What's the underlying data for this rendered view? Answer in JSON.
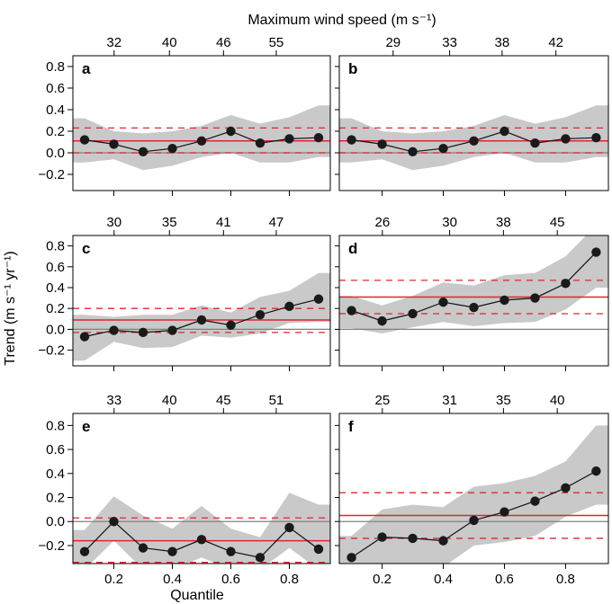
{
  "figure": {
    "top_axis_title": "Maximum wind speed (m s⁻¹)",
    "y_axis_title": "Trend (m s⁻¹ yr⁻¹)",
    "x_axis_title": "Quantile"
  },
  "chart_data": [
    {
      "type": "line",
      "panel": "a",
      "x": [
        0.1,
        0.2,
        0.3,
        0.4,
        0.5,
        0.6,
        0.7,
        0.8,
        0.9
      ],
      "series": [
        {
          "values": [
            0.12,
            0.08,
            0.01,
            0.04,
            0.11,
            0.2,
            0.09,
            0.13,
            0.14
          ]
        }
      ],
      "band_lower": [
        -0.09,
        -0.06,
        -0.16,
        -0.12,
        -0.04,
        0.0,
        -0.09,
        -0.09,
        -0.04
      ],
      "band_upper": [
        0.32,
        0.2,
        0.18,
        0.2,
        0.25,
        0.35,
        0.27,
        0.33,
        0.44
      ],
      "mean_line": 0.11,
      "dashed_lines": [
        0.0,
        0.23
      ],
      "top_ticks": [
        {
          "label": "32",
          "x": 0.16
        },
        {
          "label": "40",
          "x": 0.375
        },
        {
          "label": "46",
          "x": 0.585
        },
        {
          "label": "55",
          "x": 0.79
        }
      ],
      "ylim": [
        -0.35,
        0.9
      ],
      "yticks": [
        "0.8",
        "0.6",
        "0.4",
        "0.2",
        "0.0",
        "−0.2"
      ]
    },
    {
      "type": "line",
      "panel": "b",
      "x": [
        0.1,
        0.2,
        0.3,
        0.4,
        0.5,
        0.6,
        0.7,
        0.8,
        0.9
      ],
      "series": [
        {
          "values": [
            0.12,
            0.08,
            0.01,
            0.04,
            0.11,
            0.2,
            0.09,
            0.13,
            0.14
          ]
        }
      ],
      "band_lower": [
        -0.09,
        -0.06,
        -0.16,
        -0.12,
        -0.04,
        0.0,
        -0.09,
        -0.09,
        -0.04
      ],
      "band_upper": [
        0.32,
        0.2,
        0.18,
        0.2,
        0.25,
        0.35,
        0.27,
        0.33,
        0.44
      ],
      "mean_line": 0.11,
      "dashed_lines": [
        0.0,
        0.23
      ],
      "top_ticks": [
        {
          "label": "29",
          "x": 0.2
        },
        {
          "label": "33",
          "x": 0.41
        },
        {
          "label": "38",
          "x": 0.605
        },
        {
          "label": "42",
          "x": 0.805
        }
      ],
      "ylim": [
        -0.35,
        0.9
      ]
    },
    {
      "type": "line",
      "panel": "c",
      "x": [
        0.1,
        0.2,
        0.3,
        0.4,
        0.5,
        0.6,
        0.7,
        0.8,
        0.9
      ],
      "series": [
        {
          "values": [
            -0.07,
            -0.01,
            -0.03,
            -0.01,
            0.09,
            0.04,
            0.14,
            0.22,
            0.29
          ]
        }
      ],
      "band_lower": [
        -0.3,
        -0.12,
        -0.18,
        -0.17,
        -0.06,
        -0.08,
        -0.04,
        0.06,
        0.07
      ],
      "band_upper": [
        0.14,
        0.12,
        0.14,
        0.14,
        0.23,
        0.16,
        0.31,
        0.37,
        0.54
      ],
      "mean_line": 0.09,
      "dashed_lines": [
        -0.03,
        0.2
      ],
      "top_ticks": [
        {
          "label": "30",
          "x": 0.16
        },
        {
          "label": "35",
          "x": 0.375
        },
        {
          "label": "41",
          "x": 0.585
        },
        {
          "label": "47",
          "x": 0.79
        }
      ],
      "ylim": [
        -0.35,
        0.9
      ],
      "yticks": [
        "0.8",
        "0.6",
        "0.4",
        "0.2",
        "0.0",
        "−0.2"
      ]
    },
    {
      "type": "line",
      "panel": "d",
      "x": [
        0.1,
        0.2,
        0.3,
        0.4,
        0.5,
        0.6,
        0.7,
        0.8,
        0.9
      ],
      "series": [
        {
          "values": [
            0.18,
            0.08,
            0.15,
            0.26,
            0.21,
            0.28,
            0.3,
            0.44,
            0.74
          ]
        }
      ],
      "band_lower": [
        0.01,
        -0.04,
        0.02,
        0.07,
        0.03,
        0.06,
        0.07,
        0.19,
        0.4
      ],
      "band_upper": [
        0.32,
        0.23,
        0.32,
        0.45,
        0.42,
        0.52,
        0.54,
        0.7,
        1.0
      ],
      "mean_line": 0.31,
      "dashed_lines": [
        0.15,
        0.47
      ],
      "top_ticks": [
        {
          "label": "26",
          "x": 0.16
        },
        {
          "label": "30",
          "x": 0.41
        },
        {
          "label": "38",
          "x": 0.61
        },
        {
          "label": "45",
          "x": 0.81
        }
      ],
      "ylim": [
        -0.35,
        0.9
      ]
    },
    {
      "type": "line",
      "panel": "e",
      "x": [
        0.1,
        0.2,
        0.3,
        0.4,
        0.5,
        0.6,
        0.7,
        0.8,
        0.9
      ],
      "series": [
        {
          "values": [
            -0.25,
            0.0,
            -0.22,
            -0.25,
            -0.15,
            -0.25,
            -0.3,
            -0.05,
            -0.23
          ]
        }
      ],
      "band_lower": [
        -0.4,
        -0.16,
        -0.4,
        -0.4,
        -0.3,
        -0.4,
        -0.4,
        -0.22,
        -0.4
      ],
      "band_upper": [
        -0.07,
        0.21,
        0.05,
        -0.06,
        0.13,
        -0.06,
        -0.13,
        0.24,
        0.14
      ],
      "mean_line": -0.16,
      "dashed_lines": [
        -0.34,
        0.03
      ],
      "top_ticks": [
        {
          "label": "33",
          "x": 0.16
        },
        {
          "label": "40",
          "x": 0.375
        },
        {
          "label": "45",
          "x": 0.585
        },
        {
          "label": "51",
          "x": 0.79
        }
      ],
      "xticks": [
        "0.2",
        "0.4",
        "0.6",
        "0.8"
      ],
      "ylim": [
        -0.35,
        0.9
      ],
      "yticks": [
        "0.8",
        "0.6",
        "0.4",
        "0.2",
        "0.0",
        "−0.2"
      ]
    },
    {
      "type": "line",
      "panel": "f",
      "x": [
        0.1,
        0.2,
        0.3,
        0.4,
        0.5,
        0.6,
        0.7,
        0.8,
        0.9
      ],
      "series": [
        {
          "values": [
            -0.3,
            -0.13,
            -0.14,
            -0.16,
            0.01,
            0.08,
            0.17,
            0.28,
            0.42
          ]
        }
      ],
      "band_lower": [
        -0.4,
        -0.38,
        -0.4,
        -0.38,
        -0.2,
        -0.17,
        -0.12,
        0.04,
        0.14
      ],
      "band_upper": [
        -0.12,
        0.1,
        0.14,
        0.12,
        0.29,
        0.32,
        0.38,
        0.5,
        0.8
      ],
      "mean_line": 0.05,
      "dashed_lines": [
        -0.14,
        0.24
      ],
      "top_ticks": [
        {
          "label": "25",
          "x": 0.16
        },
        {
          "label": "31",
          "x": 0.41
        },
        {
          "label": "35",
          "x": 0.61
        },
        {
          "label": "40",
          "x": 0.81
        }
      ],
      "xticks": [
        "0.2",
        "0.4",
        "0.6",
        "0.8"
      ],
      "ylim": [
        -0.35,
        0.9
      ]
    }
  ],
  "colors": {
    "band": "#c9c9c9",
    "mean_line": "#e0262b",
    "zero_line": "#808080",
    "points": "#1a1a1a"
  }
}
